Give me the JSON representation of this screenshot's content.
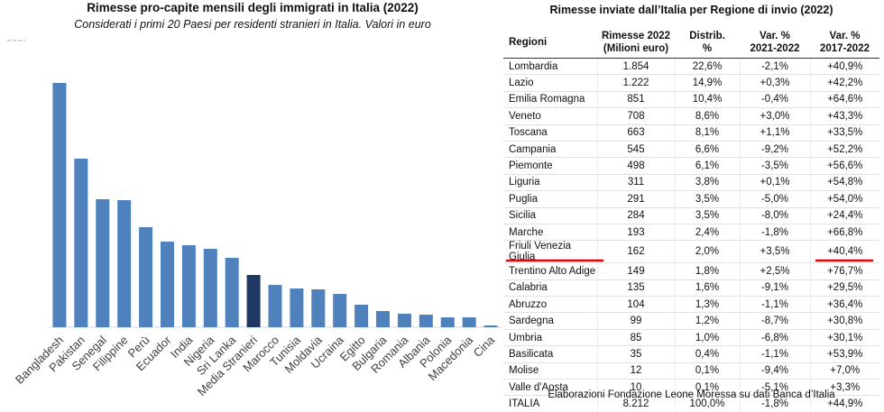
{
  "chart_data": {
    "type": "bar",
    "title": "Rimesse pro-capite mensili degli immigrati in Italia (2022)",
    "subtitle": "Considerati i primi 20 Paesi per residenti stranieri in Italia. Valori in euro",
    "categories": [
      "Bangladesh",
      "Pakistan",
      "Senegal",
      "Filippine",
      "Perù",
      "Ecuador",
      "India",
      "Nigeria",
      "Sri Lanka",
      "Media Stranieri",
      "Marocco",
      "Tunisia",
      "Moldavia",
      "Ucraina",
      "Egitto",
      "Bulgaria",
      "Romania",
      "Albania",
      "Polonia",
      "Macedonia",
      "Cina"
    ],
    "values": [
      271,
      187,
      142,
      141,
      111,
      95,
      91,
      87,
      77,
      58,
      47,
      43,
      42,
      37,
      25,
      18,
      15,
      14,
      11,
      11,
      2
    ],
    "colors": [
      "#4f81bd",
      "#4f81bd",
      "#4f81bd",
      "#4f81bd",
      "#4f81bd",
      "#4f81bd",
      "#4f81bd",
      "#4f81bd",
      "#4f81bd",
      "#1f3864",
      "#4f81bd",
      "#4f81bd",
      "#4f81bd",
      "#4f81bd",
      "#4f81bd",
      "#4f81bd",
      "#4f81bd",
      "#4f81bd",
      "#4f81bd",
      "#4f81bd",
      "#4f81bd"
    ],
    "ylim": [
      0,
      280
    ]
  },
  "table": {
    "title": "Rimesse inviate dall’Italia per Regione di invio (2022)",
    "header": [
      "Regioni",
      "Rimesse 2022\n(Milioni euro)",
      "Distrib.\n%",
      "Var. %\n2021-2022",
      "Var. %\n2017-2022"
    ],
    "rows": [
      [
        "Lombardia",
        "1.854",
        "22,6%",
        "-2,1%",
        "+40,9%"
      ],
      [
        "Lazio",
        "1.222",
        "14,9%",
        "+0,3%",
        "+42,2%"
      ],
      [
        "Emilia Romagna",
        "851",
        "10,4%",
        "-0,4%",
        "+64,6%"
      ],
      [
        "Veneto",
        "708",
        "8,6%",
        "+3,0%",
        "+43,3%"
      ],
      [
        "Toscana",
        "663",
        "8,1%",
        "+1,1%",
        "+33,5%"
      ],
      [
        "Campania",
        "545",
        "6,6%",
        "-9,2%",
        "+52,2%"
      ],
      [
        "Piemonte",
        "498",
        "6,1%",
        "-3,5%",
        "+56,6%"
      ],
      [
        "Liguria",
        "311",
        "3,8%",
        "+0,1%",
        "+54,8%"
      ],
      [
        "Puglia",
        "291",
        "3,5%",
        "-5,0%",
        "+54,0%"
      ],
      [
        "Sicilia",
        "284",
        "3,5%",
        "-8,0%",
        "+24,4%"
      ],
      [
        "Marche",
        "193",
        "2,4%",
        "-1,8%",
        "+66,8%"
      ],
      [
        "Friuli Venezia Giulia",
        "162",
        "2,0%",
        "+3,5%",
        "+40,4%"
      ],
      [
        "Trentino Alto Adige",
        "149",
        "1,8%",
        "+2,5%",
        "+76,7%"
      ],
      [
        "Calabria",
        "135",
        "1,6%",
        "-9,1%",
        "+29,5%"
      ],
      [
        "Abruzzo",
        "104",
        "1,3%",
        "-1,1%",
        "+36,4%"
      ],
      [
        "Sardegna",
        "99",
        "1,2%",
        "-8,7%",
        "+30,8%"
      ],
      [
        "Umbria",
        "85",
        "1,0%",
        "-6,8%",
        "+30,1%"
      ],
      [
        "Basilicata",
        "35",
        "0,4%",
        "-1,1%",
        "+53,9%"
      ],
      [
        "Molise",
        "12",
        "0,1%",
        "-9,4%",
        "+7,0%"
      ],
      [
        "Valle d'Aosta",
        "10",
        "0,1%",
        "-5,1%",
        "+3,3%"
      ]
    ],
    "total": [
      "ITALIA",
      "8.212",
      "100,0%",
      "-1,8%",
      "+44,9%"
    ],
    "footnote": "Elaborazioni Fondazione Leone Moressa su dati Banca d’Italia"
  }
}
